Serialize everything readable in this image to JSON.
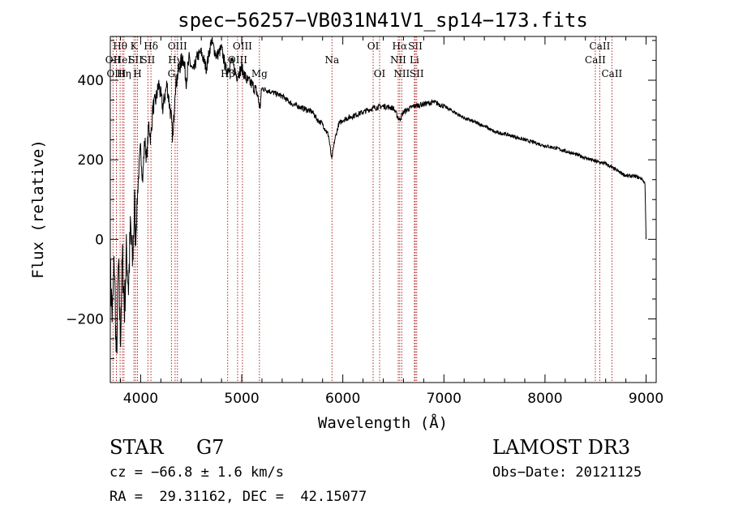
{
  "chart_data": {
    "type": "line",
    "title": "spec−56257−VB031N41V1_sp14−173.fits",
    "xlabel": "Wavelength (Å)",
    "ylabel": "Flux (relative)",
    "xlim": [
      3700,
      9100
    ],
    "ylim": [
      -360,
      510
    ],
    "xticks": [
      4000,
      5000,
      6000,
      7000,
      8000,
      9000
    ],
    "yticks": [
      -200,
      0,
      200,
      400
    ],
    "ytick_labels": [
      "−200",
      "0",
      "200",
      "400"
    ],
    "line_color": "#000000",
    "marker_color": "#b22222",
    "spectrum_keypoints": [
      [
        3700,
        -80
      ],
      [
        3720,
        -200
      ],
      [
        3740,
        -50
      ],
      [
        3760,
        -320
      ],
      [
        3780,
        -60
      ],
      [
        3800,
        -250
      ],
      [
        3820,
        -40
      ],
      [
        3840,
        -180
      ],
      [
        3860,
        -30
      ],
      [
        3880,
        -120
      ],
      [
        3900,
        30
      ],
      [
        3920,
        -60
      ],
      [
        3940,
        90
      ],
      [
        3950,
        -10
      ],
      [
        3970,
        120
      ],
      [
        3990,
        200
      ],
      [
        4000,
        230
      ],
      [
        4020,
        150
      ],
      [
        4040,
        250
      ],
      [
        4060,
        200
      ],
      [
        4080,
        290
      ],
      [
        4100,
        250
      ],
      [
        4120,
        330
      ],
      [
        4150,
        350
      ],
      [
        4180,
        390
      ],
      [
        4220,
        330
      ],
      [
        4260,
        390
      ],
      [
        4300,
        310
      ],
      [
        4320,
        250
      ],
      [
        4340,
        380
      ],
      [
        4380,
        430
      ],
      [
        4420,
        460
      ],
      [
        4450,
        400
      ],
      [
        4480,
        450
      ],
      [
        4520,
        420
      ],
      [
        4560,
        460
      ],
      [
        4600,
        470
      ],
      [
        4650,
        430
      ],
      [
        4700,
        500
      ],
      [
        4750,
        460
      ],
      [
        4800,
        480
      ],
      [
        4850,
        420
      ],
      [
        4900,
        450
      ],
      [
        4950,
        410
      ],
      [
        5000,
        430
      ],
      [
        5050,
        400
      ],
      [
        5100,
        390
      ],
      [
        5150,
        370
      ],
      [
        5180,
        330
      ],
      [
        5200,
        380
      ],
      [
        5300,
        370
      ],
      [
        5400,
        360
      ],
      [
        5500,
        340
      ],
      [
        5600,
        330
      ],
      [
        5700,
        320
      ],
      [
        5750,
        300
      ],
      [
        5800,
        290
      ],
      [
        5860,
        260
      ],
      [
        5890,
        200
      ],
      [
        5920,
        250
      ],
      [
        5960,
        290
      ],
      [
        6000,
        300
      ],
      [
        6100,
        310
      ],
      [
        6200,
        320
      ],
      [
        6300,
        330
      ],
      [
        6400,
        335
      ],
      [
        6500,
        330
      ],
      [
        6560,
        300
      ],
      [
        6600,
        320
      ],
      [
        6700,
        335
      ],
      [
        6800,
        340
      ],
      [
        6900,
        345
      ],
      [
        7000,
        335
      ],
      [
        7100,
        320
      ],
      [
        7200,
        305
      ],
      [
        7300,
        295
      ],
      [
        7400,
        285
      ],
      [
        7500,
        270
      ],
      [
        7600,
        265
      ],
      [
        7700,
        258
      ],
      [
        7800,
        250
      ],
      [
        7900,
        243
      ],
      [
        8000,
        235
      ],
      [
        8100,
        230
      ],
      [
        8200,
        222
      ],
      [
        8300,
        214
      ],
      [
        8400,
        205
      ],
      [
        8500,
        196
      ],
      [
        8600,
        190
      ],
      [
        8700,
        175
      ],
      [
        8800,
        160
      ],
      [
        8900,
        158
      ],
      [
        8960,
        152
      ],
      [
        8990,
        140
      ],
      [
        9000,
        0
      ]
    ],
    "line_markers": [
      {
        "label": "Hθ",
        "x": 3797,
        "row": 1
      },
      {
        "label": "OII",
        "x": 3727,
        "row": 2
      },
      {
        "label": "OIII",
        "x": 3760,
        "row": 3
      },
      {
        "label": "HeI",
        "x": 3820,
        "row": 2
      },
      {
        "label": "Hη",
        "x": 3835,
        "row": 3
      },
      {
        "label": "K",
        "x": 3934,
        "row": 1
      },
      {
        "label": "SII",
        "x": 3950,
        "row": 2
      },
      {
        "label": "H",
        "x": 3969,
        "row": 3
      },
      {
        "label": "Hδ",
        "x": 4102,
        "row": 1
      },
      {
        "label": "SII",
        "x": 4072,
        "row": 2
      },
      {
        "label": "OIII",
        "x": 4364,
        "row": 1
      },
      {
        "label": "Hγ",
        "x": 4341,
        "row": 2
      },
      {
        "label": "G",
        "x": 4305,
        "row": 3
      },
      {
        "label": "OIII",
        "x": 5007,
        "row": 1
      },
      {
        "label": "OIII",
        "x": 4959,
        "row": 2
      },
      {
        "label": "Hβ",
        "x": 4861,
        "row": 3
      },
      {
        "label": "Mg",
        "x": 5175,
        "row": 3
      },
      {
        "label": "Na",
        "x": 5893,
        "row": 2
      },
      {
        "label": "OI",
        "x": 6300,
        "row": 1
      },
      {
        "label": "OI",
        "x": 6364,
        "row": 3
      },
      {
        "label": "Hα",
        "x": 6563,
        "row": 1
      },
      {
        "label": "NII",
        "x": 6548,
        "row": 2
      },
      {
        "label": "NII",
        "x": 6583,
        "row": 3
      },
      {
        "label": "SII",
        "x": 6717,
        "row": 1
      },
      {
        "label": "Li",
        "x": 6708,
        "row": 2
      },
      {
        "label": "SII",
        "x": 6731,
        "row": 3
      },
      {
        "label": "CaII",
        "x": 8542,
        "row": 1
      },
      {
        "label": "CaII",
        "x": 8498,
        "row": 2
      },
      {
        "label": "CaII",
        "x": 8662,
        "row": 3
      }
    ]
  },
  "info": {
    "object_class": "STAR",
    "subclass": "G7",
    "redshift": "cz = −66.8 ± 1.6 km/s",
    "coords": "RA =  29.31162, DEC =  42.15077",
    "survey": "LAMOST DR3",
    "obs_date": "Obs−Date: 20121125"
  }
}
